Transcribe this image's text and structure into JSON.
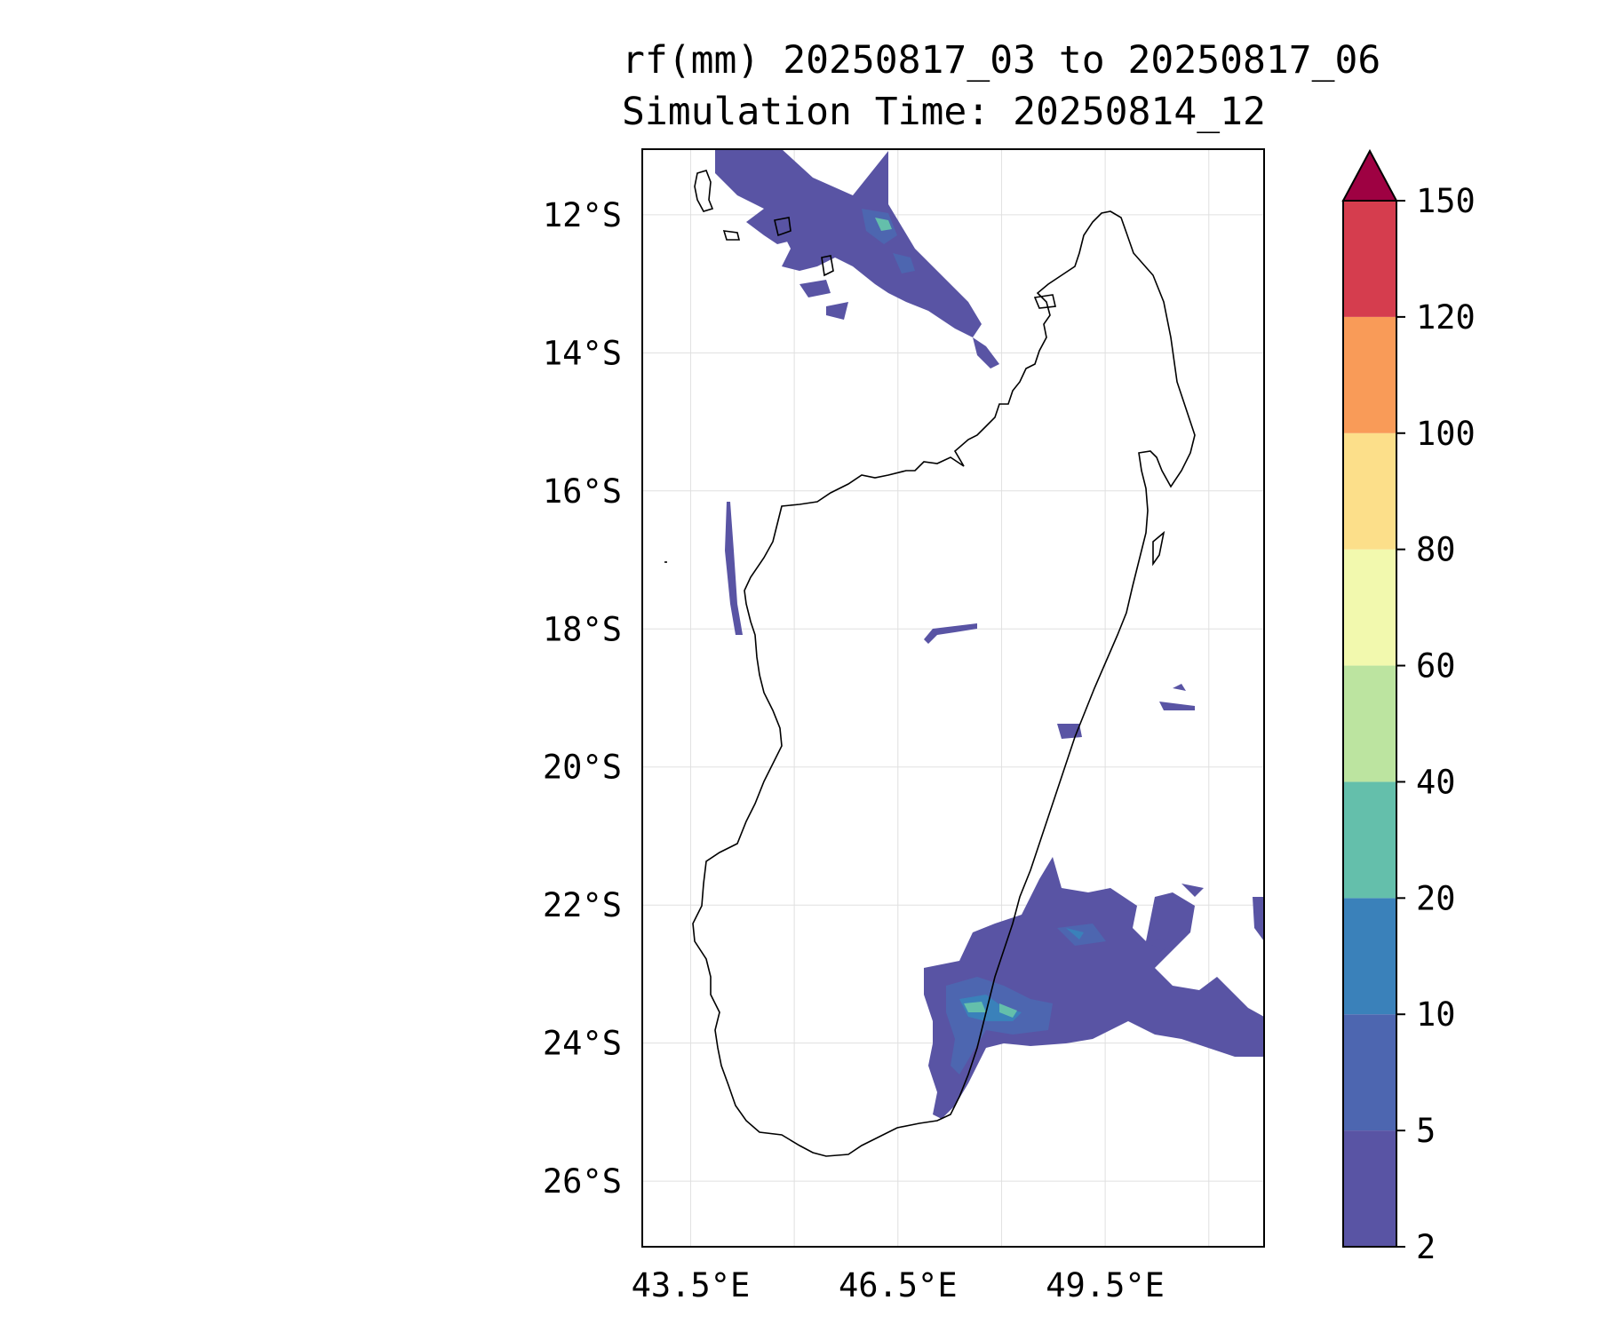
{
  "title": {
    "line1": "rf(mm) 20250817_03 to 20250817_06",
    "line2": "Simulation Time: 20250814_12"
  },
  "map": {
    "region": "Madagascar",
    "lon_range": [
      42.8,
      51.8
    ],
    "lat_range": [
      -26.95,
      -11.05
    ],
    "lat_ticks": [
      "12°S",
      "14°S",
      "16°S",
      "18°S",
      "20°S",
      "22°S",
      "24°S",
      "26°S"
    ],
    "lon_ticks": [
      "43.5°E",
      "46.5°E",
      "49.5°E"
    ],
    "grid": true
  },
  "colorbar": {
    "levels": [
      "2",
      "5",
      "10",
      "20",
      "40",
      "60",
      "80",
      "100",
      "120",
      "150"
    ],
    "colors": [
      "#5954a4",
      "#4d66b0",
      "#3a81ba",
      "#64bfab",
      "#bce4a0",
      "#f2f9ae",
      "#fcdf8a",
      "#f99b58",
      "#d53d4e",
      "#9e0142"
    ],
    "extend": "max"
  }
}
